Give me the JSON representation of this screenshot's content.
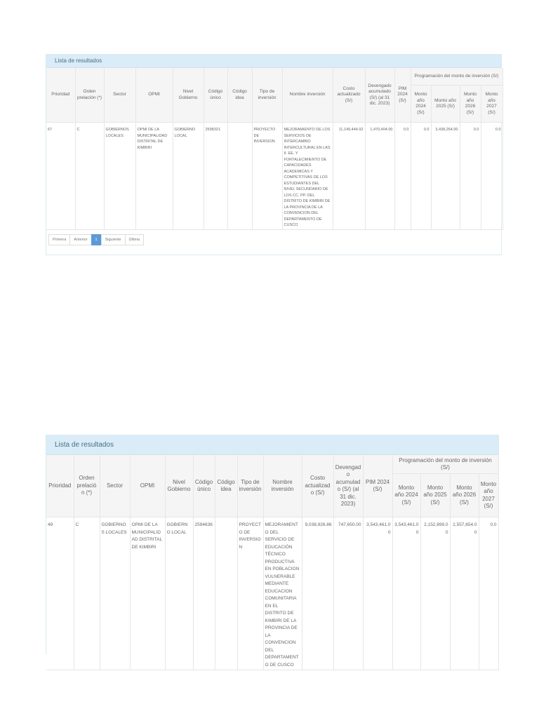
{
  "panel_title": "Lista de resultados",
  "headers": {
    "prioridad": "Prioridad",
    "orden": "Orden prelación (*)",
    "sector": "Sector",
    "opmi": "OPMI",
    "nivel": "Nivel Gobierno",
    "codigo_unico": "Código único",
    "codigo_idea": "Código idea",
    "tipo": "Tipo de inversión",
    "nombre": "Nombre inversión",
    "costo": "Costo actualizado (S/)",
    "devengado": "Devengado acumulado (S/) (al 31 dic. 2023)",
    "pim": "PIM 2024 (S/)",
    "group": "Programación del monto de inversión (S/)",
    "m2024": "Monto año 2024 (S/)",
    "m2025": "Monto año 2025 (S/)",
    "m2026": "Monto año 2026 (S/)",
    "m2027": "Monto año 2027 (S/)"
  },
  "results": [
    {
      "prioridad": "67",
      "orden": "C",
      "sector": "GOBIERNOS LOCALES",
      "opmi": "OPMI DE LA MUNICIPALIDAD DISTRITAL DE KIMBIRI",
      "nivel": "GOBIERNO LOCAL",
      "codigo_unico": "2598321",
      "codigo_idea": "",
      "tipo": "PROYECTO DE INVERSION",
      "nombre": "MEJORAMIENTO DE LOS SERVICIOS DE INTERCAMBIO INTERCULTURAL EN LAS II. EE. Y FORTALECIMIENTO DE CAPACIDADES ACADEMICAS Y COMPETITIVAS DE LOS ESTUDIANTES DEL NIVEL SECUNDARIO DE LOS CC. PP. DEL DISTRITO DE KIMBIRI DE LA PROVINCIA DE LA CONVENCION DEL DEPARTAMENTO DE CUSCO",
      "costo": "11,149,444.92",
      "devengado": "1,470,404.00",
      "pim": "0.0",
      "m2024": "0.0",
      "m2025": "3,438,264.00",
      "m2026": "0.0",
      "m2027": "0.0"
    },
    {
      "prioridad": "49",
      "orden": "C",
      "sector": "GOBIERNOS LOCALES",
      "opmi": "OPMI DE LA MUNICIPALIDAD DISTRITAL DE KIMBIRI",
      "nivel": "GOBIERNO LOCAL",
      "codigo_unico": "2594636",
      "codigo_idea": "",
      "tipo": "PROYECTO DE INVERSION",
      "nombre": "MEJORAMIENTO DEL SERVICIO DE EDUCACIÓN TÉCNICO PRODUCTIVA EN POBLACION VULNERABLE MEDIANTE EDUCACION COMUNITARIA EN EL DISTRITO DE KIMBIRI DE LA PROVINCIA DE LA CONVENCION DEL DEPARTAMENTO DE CUSCO",
      "costo": "9,038,926.86",
      "devengado": "747,650.00",
      "pim": "3,543,461.00",
      "m2024": "3,543,461.00",
      "m2025": "2,152,899.00",
      "m2026": "2,557,654.00",
      "m2027": "0.0"
    }
  ],
  "pagination": {
    "first": "Primera",
    "prev": "Anterior",
    "current": "1",
    "next": "Siguiente",
    "last": "Última"
  },
  "colors": {
    "header_bg": "#d9ecf7",
    "active_page": "#5b9bd5"
  }
}
